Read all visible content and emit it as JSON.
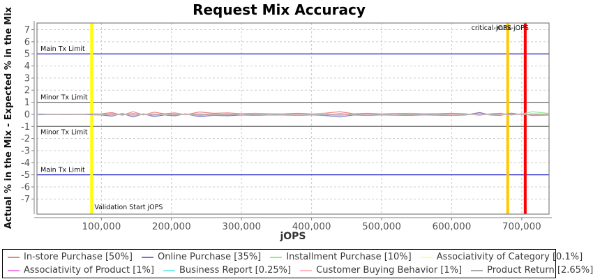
{
  "title": "Request Mix Accuracy",
  "colors": {
    "grid": "#cccccc",
    "frame": "#808080",
    "axis_line": "#808080",
    "tick_label": "#555555",
    "annotation": "#111111",
    "legend_text": "#3a3a3a"
  },
  "chart_data": {
    "type": "line",
    "title": "Request Mix Accuracy",
    "xlabel": "jOPS",
    "ylabel": "Actual % in the Mix - Expected % in the Mix",
    "xlim": [
      8000,
      739000
    ],
    "ylim": [
      -8.25,
      7.55
    ],
    "grid": true,
    "legend_position": "bottom",
    "legend_columns": 4,
    "xticks": [
      100000,
      200000,
      300000,
      400000,
      500000,
      600000,
      700000
    ],
    "xtick_labels": [
      "100,000",
      "200,000",
      "300,000",
      "400,000",
      "500,000",
      "600,000",
      "700,000"
    ],
    "yticks": [
      -7,
      -6,
      -5,
      -4,
      -3,
      -2,
      -1,
      0,
      1,
      2,
      3,
      4,
      5,
      6,
      7
    ],
    "limit_lines": [
      {
        "label": "Main Tx Limit",
        "y": 5,
        "color": "#2222cc",
        "label_side": "above"
      },
      {
        "label": "Minor Tx Limit",
        "y": 1,
        "color": "#666666",
        "label_side": "above"
      },
      {
        "label": "Minor Tx Limit",
        "y": -1,
        "color": "#666666",
        "label_side": "below"
      },
      {
        "label": "Main Tx Limit",
        "y": -5,
        "color": "#2222cc",
        "label_side": "above"
      }
    ],
    "marker_lines": [
      {
        "label": "Validation Start jOPS",
        "x": 86000,
        "color": "#ffff00",
        "label_position": "bottom"
      },
      {
        "label": "critical-jOPS",
        "x": 680000,
        "color": "#ffc800",
        "label_position": "top"
      },
      {
        "label": "max-jOPS",
        "x": 705000,
        "color": "#ff0000",
        "label_position": "top"
      }
    ],
    "x": [
      10000,
      30000,
      50000,
      70000,
      86000,
      100000,
      115000,
      130000,
      145000,
      160000,
      175000,
      190000,
      205000,
      220000,
      240000,
      260000,
      280000,
      300000,
      320000,
      340000,
      360000,
      380000,
      400000,
      420000,
      440000,
      460000,
      480000,
      500000,
      520000,
      540000,
      560000,
      580000,
      600000,
      620000,
      640000,
      655000,
      670000,
      685000,
      700000,
      715000,
      738000
    ],
    "series": [
      {
        "name": "In-store Purchase [50%]",
        "color": "#f08080",
        "values": [
          0.03,
          0.0,
          0.02,
          0.0,
          0.03,
          0.05,
          0.15,
          -0.08,
          0.22,
          -0.05,
          0.18,
          0.05,
          0.12,
          -0.04,
          0.2,
          0.08,
          0.12,
          0.05,
          0.08,
          0.04,
          0.05,
          0.08,
          0.04,
          0.1,
          0.22,
          0.05,
          0.08,
          0.04,
          0.06,
          0.08,
          0.04,
          0.06,
          0.08,
          0.05,
          -0.08,
          0.05,
          0.08,
          -0.05,
          0.04,
          -0.1,
          -0.06
        ]
      },
      {
        "name": "Online Purchase [35%]",
        "color": "#7372ce",
        "values": [
          -0.03,
          0.0,
          -0.02,
          0.0,
          -0.03,
          -0.05,
          -0.15,
          0.08,
          -0.22,
          0.05,
          -0.18,
          -0.05,
          -0.12,
          0.04,
          -0.2,
          -0.08,
          -0.12,
          -0.05,
          -0.08,
          -0.04,
          -0.05,
          -0.08,
          -0.04,
          -0.1,
          -0.22,
          -0.05,
          -0.08,
          -0.04,
          -0.06,
          -0.08,
          -0.04,
          -0.06,
          -0.08,
          -0.05,
          0.15,
          -0.05,
          -0.08,
          0.1,
          -0.04,
          0.05,
          0.0
        ]
      },
      {
        "name": "Installment Purchase [10%]",
        "color": "#90ee90",
        "values": [
          0.0,
          0.01,
          0.0,
          0.01,
          0.0,
          0.02,
          -0.08,
          0.04,
          -0.1,
          0.02,
          -0.08,
          0.0,
          -0.06,
          0.02,
          -0.1,
          -0.03,
          -0.05,
          0.0,
          -0.04,
          0.0,
          -0.02,
          -0.04,
          0.0,
          -0.05,
          -0.1,
          0.0,
          -0.03,
          0.0,
          -0.02,
          -0.03,
          0.0,
          -0.02,
          -0.04,
          0.0,
          0.04,
          0.0,
          0.02,
          0.0,
          0.03,
          0.22,
          0.08
        ]
      },
      {
        "name": "Associativity of Category [0.1%]",
        "color": "#ffff99",
        "values": [
          0,
          0,
          0,
          0,
          0,
          0.01,
          -0.01,
          0.01,
          -0.01,
          0,
          0.01,
          0,
          -0.01,
          0,
          0.01,
          0,
          -0.01,
          0,
          0.01,
          0,
          0,
          -0.01,
          0,
          0.01,
          -0.01,
          0,
          0.01,
          0,
          -0.01,
          0,
          0.01,
          0,
          -0.01,
          0,
          0.01,
          0,
          -0.01,
          0,
          0.01,
          0,
          0
        ]
      },
      {
        "name": "Associativity of Product [1%]",
        "color": "#ee82ee",
        "values": [
          0,
          0.01,
          -0.01,
          0.01,
          0,
          0.02,
          -0.03,
          0.02,
          -0.03,
          0.01,
          -0.02,
          0.02,
          -0.02,
          0.01,
          -0.03,
          0.01,
          -0.02,
          0.01,
          -0.02,
          0.01,
          -0.01,
          0.02,
          -0.01,
          0.02,
          -0.03,
          0.01,
          -0.02,
          0.01,
          -0.01,
          0.02,
          -0.01,
          0.01,
          -0.02,
          0.01,
          -0.02,
          0.01,
          -0.01,
          0.02,
          -0.01,
          0.02,
          0.01
        ]
      },
      {
        "name": "Business Report [0.25%]",
        "color": "#7fe8e8",
        "values": [
          0,
          -0.01,
          0.01,
          -0.01,
          0,
          -0.02,
          0.03,
          -0.02,
          0.03,
          -0.01,
          0.02,
          -0.02,
          0.02,
          -0.01,
          0.03,
          -0.01,
          0.02,
          -0.01,
          0.02,
          -0.01,
          0.01,
          -0.02,
          0.01,
          -0.02,
          0.03,
          -0.01,
          0.02,
          -0.01,
          0.01,
          -0.02,
          0.01,
          -0.01,
          0.02,
          -0.01,
          0.02,
          -0.01,
          0.01,
          -0.02,
          0.01,
          -0.02,
          -0.01
        ]
      },
      {
        "name": "Customer Buying Behavior [1%]",
        "color": "#ffb6c1",
        "values": [
          0.01,
          -0.02,
          0.02,
          -0.02,
          0.01,
          0.04,
          -0.06,
          0.04,
          -0.06,
          0.02,
          0.05,
          -0.04,
          0.05,
          -0.03,
          0.06,
          -0.03,
          0.04,
          -0.03,
          0.04,
          -0.02,
          0.03,
          -0.04,
          0.03,
          0.06,
          -0.06,
          0.02,
          -0.04,
          0.03,
          -0.03,
          0.04,
          -0.02,
          0.03,
          -0.04,
          0.02,
          -0.05,
          0.03,
          -0.04,
          0.04,
          -0.03,
          0.05,
          0.02
        ]
      },
      {
        "name": "Product Return [2.65%]",
        "color": "#a8a8a8",
        "values": [
          -0.01,
          0.02,
          -0.02,
          0.02,
          -0.01,
          -0.04,
          0.06,
          -0.04,
          0.06,
          -0.02,
          -0.05,
          0.04,
          -0.05,
          0.03,
          -0.06,
          0.03,
          -0.04,
          0.03,
          -0.04,
          0.02,
          -0.03,
          0.04,
          -0.03,
          -0.06,
          0.06,
          -0.02,
          0.04,
          -0.03,
          0.03,
          -0.04,
          0.02,
          -0.03,
          0.04,
          -0.02,
          0.05,
          -0.03,
          0.04,
          -0.04,
          0.03,
          -0.05,
          -0.02
        ]
      }
    ]
  }
}
